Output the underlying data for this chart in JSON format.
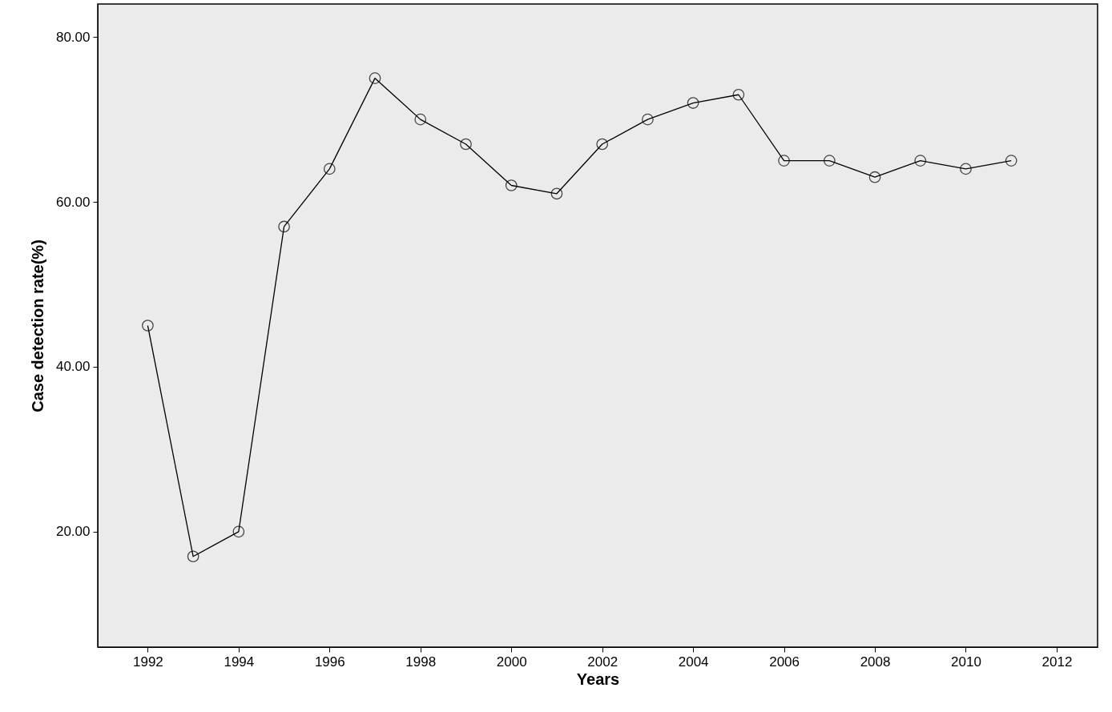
{
  "chart_data": {
    "type": "line",
    "xlabel": "Years",
    "ylabel": "Case detection rate(%)",
    "x": [
      1992,
      1993,
      1994,
      1995,
      1996,
      1997,
      1998,
      1999,
      2000,
      2001,
      2002,
      2003,
      2004,
      2005,
      2006,
      2007,
      2008,
      2009,
      2010,
      2011
    ],
    "series": [
      {
        "color": "#000000",
        "values": [
          45,
          17,
          20,
          57,
          64,
          75,
          70,
          67,
          62,
          61,
          67,
          70,
          72,
          73,
          65,
          65,
          63,
          65,
          64,
          65
        ]
      }
    ],
    "xlim": [
      1990.9,
      2012.9
    ],
    "xticks": [
      1992,
      1994,
      1996,
      1998,
      2000,
      2002,
      2004,
      2006,
      2008,
      2010,
      2012
    ],
    "ylim": [
      6,
      84
    ],
    "yticks": [
      {
        "value": 20,
        "label": "20.00"
      },
      {
        "value": 40,
        "label": "40.00"
      },
      {
        "value": 60,
        "label": "60.00"
      },
      {
        "value": 80,
        "label": "80.00"
      }
    ],
    "grid": false,
    "marker": "circle",
    "line_style": "solid"
  }
}
